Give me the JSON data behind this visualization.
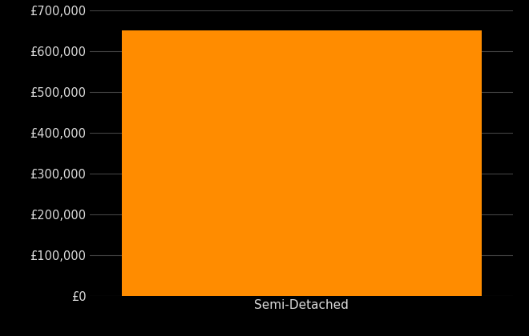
{
  "categories": [
    "Semi-Detached"
  ],
  "values": [
    650000
  ],
  "bar_color": "#FF8C00",
  "background_color": "#000000",
  "text_color": "#DDDDDD",
  "grid_color": "#444444",
  "ylim": [
    0,
    700000
  ],
  "ytick_step": 100000,
  "bar_width": 0.85,
  "tick_fontsize": 10.5,
  "xlabel_fontsize": 11
}
